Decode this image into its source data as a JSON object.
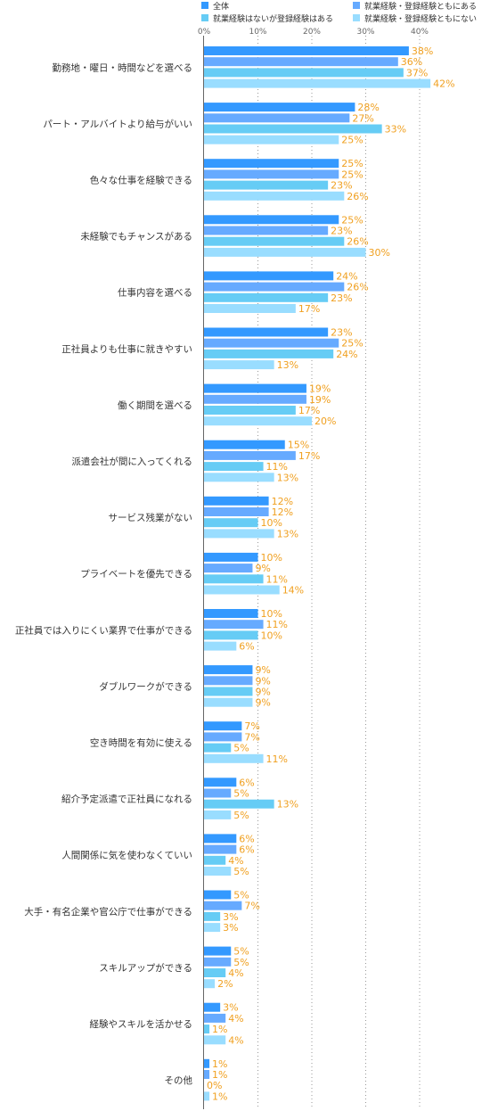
{
  "chart_data": {
    "type": "bar",
    "orientation": "horizontal",
    "title": "",
    "xlabel": "",
    "ylabel": "",
    "xlim": [
      0,
      40
    ],
    "ticks": [
      "0%",
      "10%",
      "20%",
      "30%",
      "40%"
    ],
    "grid": true,
    "legend_position": "top",
    "value_label_color": "#f0a020",
    "categories": [
      "勤務地・曜日・時間などを選べる",
      "パート・アルバイトより給与がいい",
      "色々な仕事を経験できる",
      "未経験でもチャンスがある",
      "仕事内容を選べる",
      "正社員よりも仕事に就きやすい",
      "働く期間を選べる",
      "派遣会社が間に入ってくれる",
      "サービス残業がない",
      "プライベートを優先できる",
      "正社員では入りにくい業界で仕事ができる",
      "ダブルワークができる",
      "空き時間を有効に使える",
      "紹介予定派遣で正社員になれる",
      "人間関係に気を使わなくていい",
      "大手・有名企業や官公庁で仕事ができる",
      "スキルアップができる",
      "経験やスキルを活かせる",
      "その他"
    ],
    "series": [
      {
        "name": "全体",
        "color": "#3399ff",
        "values": [
          38,
          28,
          25,
          25,
          24,
          23,
          19,
          15,
          12,
          10,
          10,
          9,
          7,
          6,
          6,
          5,
          5,
          3,
          1
        ]
      },
      {
        "name": "就業経験・登録経験ともにある",
        "color": "#66aaff",
        "values": [
          36,
          27,
          25,
          23,
          26,
          25,
          19,
          17,
          12,
          9,
          11,
          9,
          7,
          5,
          6,
          7,
          5,
          4,
          1
        ]
      },
      {
        "name": "就業経験はないが登録経験はある",
        "color": "#66ccf5",
        "values": [
          37,
          33,
          23,
          26,
          23,
          24,
          17,
          11,
          10,
          11,
          10,
          9,
          5,
          13,
          4,
          3,
          4,
          1,
          0
        ]
      },
      {
        "name": "就業経験・登録経験ともにない",
        "color": "#99ddff",
        "values": [
          42,
          25,
          26,
          30,
          17,
          13,
          20,
          13,
          13,
          14,
          6,
          9,
          11,
          5,
          5,
          3,
          2,
          4,
          1
        ]
      }
    ],
    "value_suffix": "%"
  }
}
